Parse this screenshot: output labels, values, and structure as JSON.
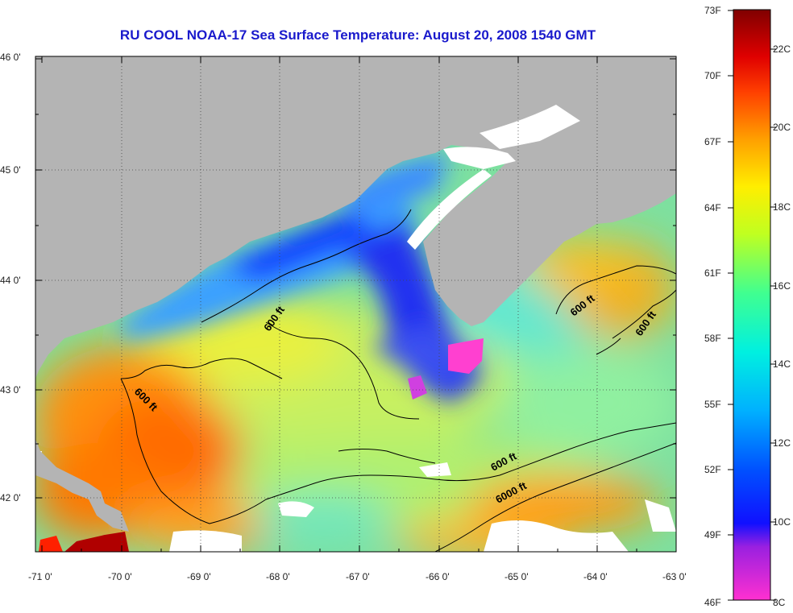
{
  "title": "RU COOL  NOAA-17  Sea Surface Temperature:  August 20, 2008 1540 GMT",
  "latitude_labels": [
    "46 0'",
    "45 0'",
    "44 0'",
    "43 0'",
    "42 0'"
  ],
  "longitude_labels": [
    "-71 0'",
    "-70 0'",
    "-69 0'",
    "-68 0'",
    "-67 0'",
    "-66 0'",
    "-65 0'",
    "-64 0'",
    "-63 0'"
  ],
  "contour_labels": [
    "600 ft",
    "600 ft",
    "600 ft",
    "600 ft",
    "600 ft",
    "6000 ft"
  ],
  "colorbar": {
    "fahrenheit": [
      "73F",
      "70F",
      "67F",
      "64F",
      "61F",
      "58F",
      "55F",
      "52F",
      "49F",
      "46F"
    ],
    "celsius": [
      "22C",
      "20C",
      "18C",
      "16C",
      "14C",
      "12C",
      "10C",
      "8C"
    ],
    "range_f": [
      46,
      73
    ],
    "range_c": [
      8,
      23
    ]
  },
  "colors": {
    "land": "#b4b4b4",
    "cloud": "#ffffff",
    "title": "#1a1acc"
  }
}
